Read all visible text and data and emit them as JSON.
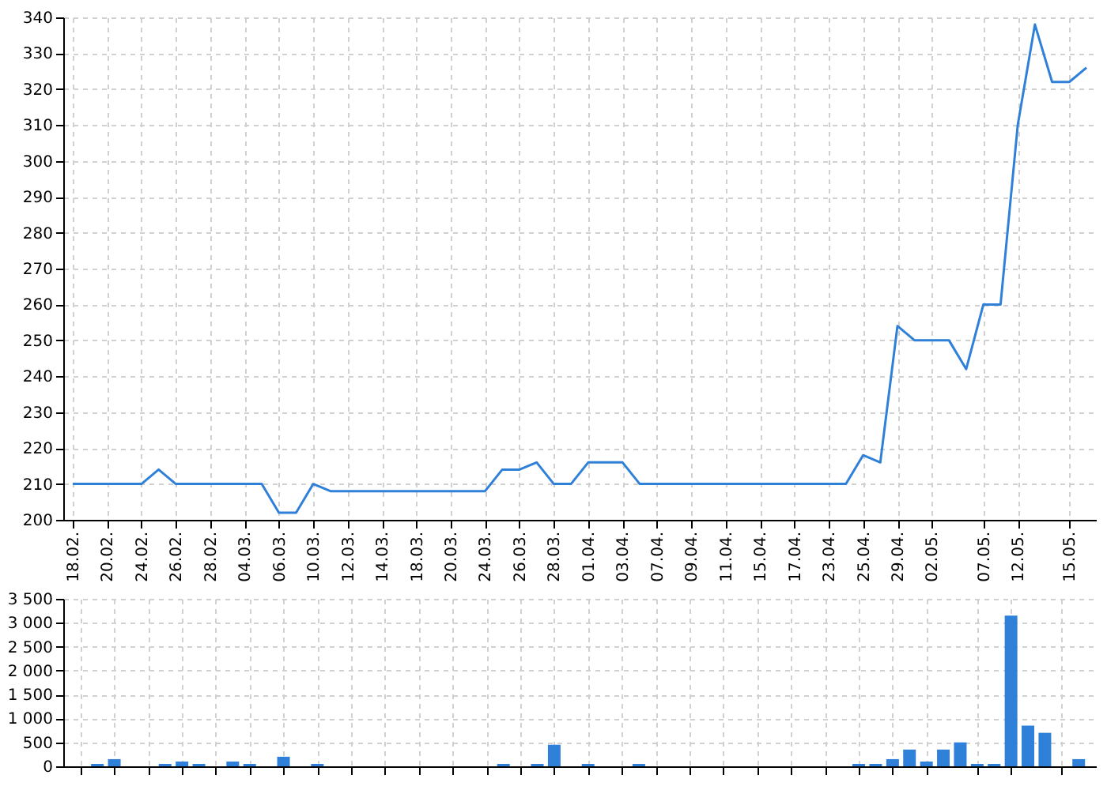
{
  "chart_data": [
    {
      "type": "line",
      "categories": [
        "18.02.",
        null,
        "20.02.",
        null,
        "24.02.",
        null,
        "26.02.",
        null,
        "28.02.",
        null,
        "04.03.",
        null,
        "06.03.",
        null,
        "10.03.",
        null,
        "12.03.",
        null,
        "14.03.",
        null,
        "18.03.",
        null,
        "20.03.",
        null,
        "24.03.",
        null,
        "26.03.",
        null,
        "28.03.",
        null,
        "01.04.",
        null,
        "03.04.",
        null,
        "07.04.",
        null,
        "09.04.",
        null,
        "11.04.",
        null,
        "15.04.",
        null,
        "17.04.",
        null,
        "23.04.",
        null,
        "25.04.",
        null,
        "29.04.",
        null,
        "02.05.",
        null,
        null,
        "07.05.",
        null,
        "12.05.",
        null,
        null,
        "15.05.",
        null
      ],
      "series": [
        {
          "color": "#2f80d8",
          "values": [
            210,
            210,
            210,
            210,
            210,
            214,
            210,
            210,
            210,
            210,
            210,
            210,
            202,
            202,
            210,
            208,
            208,
            208,
            208,
            208,
            208,
            208,
            208,
            208,
            208,
            214,
            214,
            216,
            210,
            210,
            216,
            216,
            216,
            210,
            210,
            210,
            210,
            210,
            210,
            210,
            210,
            210,
            210,
            210,
            210,
            210,
            218,
            216,
            254,
            250,
            250,
            250,
            242,
            260,
            260,
            310,
            338,
            322,
            322,
            326
          ]
        }
      ],
      "ylim": [
        200,
        340
      ],
      "yticks": [
        200,
        210,
        220,
        230,
        240,
        250,
        260,
        270,
        280,
        290,
        300,
        310,
        320,
        330,
        340
      ],
      "grid": true
    },
    {
      "type": "bar",
      "categories": [
        "18.02.",
        null,
        "20.02.",
        null,
        "24.02.",
        null,
        "26.02.",
        null,
        "28.02.",
        null,
        "04.03.",
        null,
        "06.03.",
        null,
        "10.03.",
        null,
        "12.03.",
        null,
        "14.03.",
        null,
        "18.03.",
        null,
        "20.03.",
        null,
        "24.03.",
        null,
        "26.03.",
        null,
        "28.03.",
        null,
        "01.04.",
        null,
        "03.04.",
        null,
        "07.04.",
        null,
        "09.04.",
        null,
        "11.04.",
        null,
        "15.04.",
        null,
        "17.04.",
        null,
        "23.04.",
        null,
        "25.04.",
        null,
        "29.04.",
        null,
        "02.05.",
        null,
        null,
        "07.05.",
        null,
        "12.05.",
        null,
        null,
        "15.05.",
        null
      ],
      "series": [
        {
          "color": "#2f80d8",
          "values": [
            0,
            50,
            150,
            0,
            0,
            50,
            100,
            50,
            0,
            100,
            50,
            0,
            200,
            0,
            50,
            0,
            0,
            0,
            0,
            0,
            0,
            0,
            0,
            0,
            0,
            50,
            0,
            50,
            450,
            0,
            50,
            0,
            0,
            50,
            0,
            0,
            0,
            0,
            0,
            0,
            0,
            0,
            0,
            0,
            0,
            0,
            50,
            50,
            150,
            350,
            100,
            350,
            500,
            50,
            50,
            3150,
            850,
            700,
            0,
            150
          ]
        }
      ],
      "ylim": [
        0,
        3500
      ],
      "yticks": [
        0,
        {
          "value": 500,
          "label": "500"
        },
        {
          "value": 1000,
          "label": "1 000"
        },
        {
          "value": 1500,
          "label": "1 500"
        },
        {
          "value": 2000,
          "label": "2 000"
        },
        {
          "value": 2500,
          "label": "2 500"
        },
        {
          "value": 3000,
          "label": "3 000"
        },
        {
          "value": 3500,
          "label": "3 500"
        }
      ],
      "grid": true,
      "tick_labels": "y"
    }
  ]
}
